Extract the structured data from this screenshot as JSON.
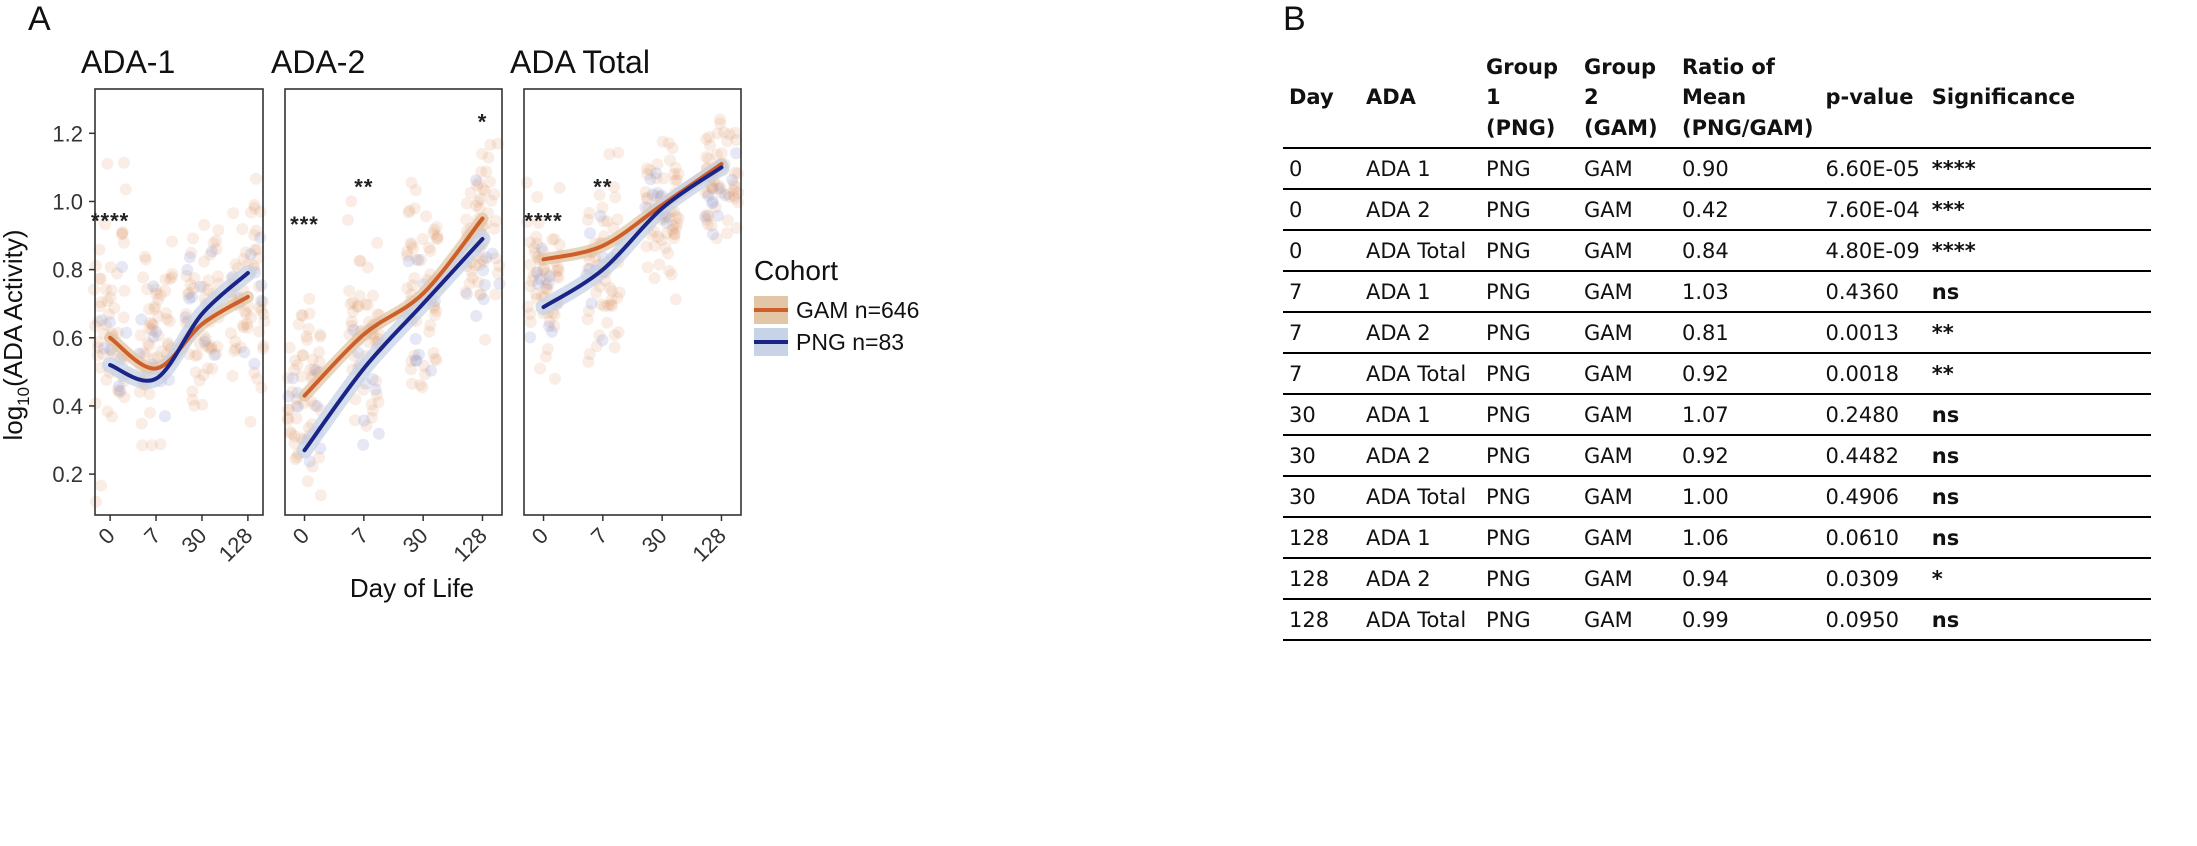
{
  "figure": {
    "panel_a_label": "A",
    "panel_b_label": "B"
  },
  "chart_data": {
    "type": "line",
    "xlabel": "Day of Life",
    "ylabel_pre": "log",
    "ylabel_sub": "10",
    "ylabel_post": "(ADA Activity)",
    "categories": [
      "0",
      "7",
      "30",
      "128"
    ],
    "ylim": [
      0.08,
      1.33
    ],
    "yticks": [
      0.2,
      0.4,
      0.6,
      0.8,
      1.0,
      1.2
    ],
    "ytick_labels": [
      "0.2",
      "0.4",
      "0.6",
      "0.8",
      "1.0",
      "1.2"
    ],
    "legend": {
      "title": "Cohort",
      "placement": "right",
      "entries": [
        {
          "label": "GAM n=646",
          "color": "#cf5f2a",
          "band": "#e2c6a6"
        },
        {
          "label": "PNG n=83",
          "color": "#1b2487",
          "band": "#c7d3e6"
        }
      ]
    },
    "panels": [
      {
        "title": "ADA-1",
        "series": [
          {
            "name": "GAM",
            "values": [
              0.6,
              0.51,
              0.64,
              0.72
            ]
          },
          {
            "name": "PNG",
            "values": [
              0.52,
              0.48,
              0.67,
              0.79
            ]
          }
        ],
        "range": {
          "GAM": [
            [
              0.15,
              1.1
            ],
            [
              0.2,
              0.95
            ],
            [
              0.35,
              1.0
            ],
            [
              0.4,
              1.05
            ]
          ],
          "PNG": [
            [
              0.3,
              0.85
            ],
            [
              0.25,
              0.8
            ],
            [
              0.4,
              0.95
            ],
            [
              0.45,
              1.0
            ]
          ]
        },
        "annotations": [
          {
            "text": "****",
            "cat": 0,
            "y": 0.95
          }
        ]
      },
      {
        "title": "ADA-2",
        "series": [
          {
            "name": "GAM",
            "values": [
              0.43,
              0.61,
              0.73,
              0.95
            ]
          },
          {
            "name": "PNG",
            "values": [
              0.27,
              0.51,
              0.7,
              0.89
            ]
          }
        ],
        "range": {
          "GAM": [
            [
              0.1,
              0.8
            ],
            [
              0.15,
              1.0
            ],
            [
              0.35,
              1.15
            ],
            [
              0.55,
              1.25
            ]
          ],
          "PNG": [
            [
              0.12,
              0.6
            ],
            [
              0.2,
              0.85
            ],
            [
              0.4,
              1.0
            ],
            [
              0.5,
              1.15
            ]
          ]
        },
        "annotations": [
          {
            "text": "***",
            "cat": 0,
            "y": 0.94
          },
          {
            "text": "**",
            "cat": 1,
            "y": 1.05
          },
          {
            "text": "*",
            "cat": 3,
            "y": 1.24
          }
        ]
      },
      {
        "title": "ADA Total",
        "series": [
          {
            "name": "GAM",
            "values": [
              0.83,
              0.87,
              0.99,
              1.11
            ]
          },
          {
            "name": "PNG",
            "values": [
              0.69,
              0.8,
              0.98,
              1.1
            ]
          }
        ],
        "range": {
          "GAM": [
            [
              0.45,
              1.1
            ],
            [
              0.5,
              1.15
            ],
            [
              0.7,
              1.25
            ],
            [
              0.8,
              1.3
            ]
          ],
          "PNG": [
            [
              0.5,
              1.0
            ],
            [
              0.55,
              1.05
            ],
            [
              0.75,
              1.15
            ],
            [
              0.85,
              1.25
            ]
          ]
        },
        "annotations": [
          {
            "text": "****",
            "cat": 0,
            "y": 0.95
          },
          {
            "text": "**",
            "cat": 1,
            "y": 1.05
          }
        ]
      }
    ]
  },
  "table": {
    "headers": [
      "Day",
      "ADA",
      "Group 1 (PNG)",
      "Group 2 (GAM)",
      "Ratio of Mean (PNG/GAM)",
      "p-value",
      "Significance"
    ],
    "rows": [
      [
        "0",
        "ADA 1",
        "PNG",
        "GAM",
        "0.90",
        "6.60E-05",
        "****"
      ],
      [
        "0",
        "ADA 2",
        "PNG",
        "GAM",
        "0.42",
        "7.60E-04",
        "***"
      ],
      [
        "0",
        "ADA Total",
        "PNG",
        "GAM",
        "0.84",
        "4.80E-09",
        "****"
      ],
      [
        "7",
        "ADA 1",
        "PNG",
        "GAM",
        "1.03",
        "0.4360",
        "ns"
      ],
      [
        "7",
        "ADA 2",
        "PNG",
        "GAM",
        "0.81",
        "0.0013",
        "**"
      ],
      [
        "7",
        "ADA Total",
        "PNG",
        "GAM",
        "0.92",
        "0.0018",
        "**"
      ],
      [
        "30",
        "ADA 1",
        "PNG",
        "GAM",
        "1.07",
        "0.2480",
        "ns"
      ],
      [
        "30",
        "ADA 2",
        "PNG",
        "GAM",
        "0.92",
        "0.4482",
        "ns"
      ],
      [
        "30",
        "ADA Total",
        "PNG",
        "GAM",
        "1.00",
        "0.4906",
        "ns"
      ],
      [
        "128",
        "ADA 1",
        "PNG",
        "GAM",
        "1.06",
        "0.0610",
        "ns"
      ],
      [
        "128",
        "ADA 2",
        "PNG",
        "GAM",
        "0.94",
        "0.0309",
        "*"
      ],
      [
        "128",
        "ADA Total",
        "PNG",
        "GAM",
        "0.99",
        "0.0950",
        "ns"
      ]
    ]
  }
}
